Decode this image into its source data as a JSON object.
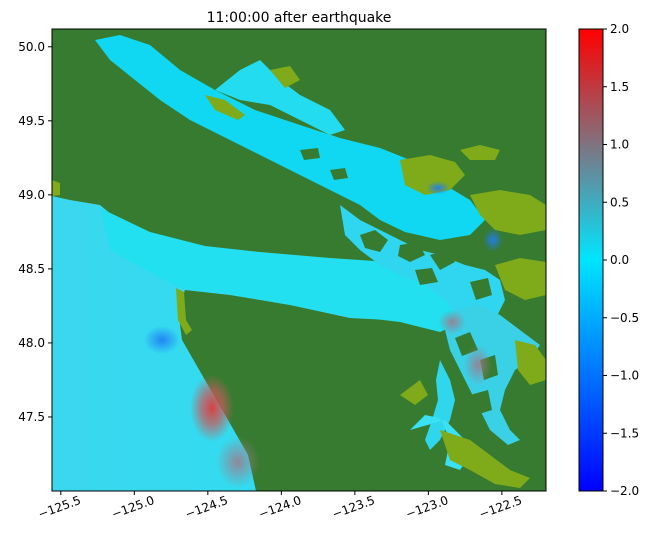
{
  "chart_data": {
    "type": "heatmap",
    "title": "11:00:00 after earthquake",
    "xlabel": "",
    "ylabel": "",
    "xlim": [
      -125.56,
      -122.2
    ],
    "ylim": [
      47.0,
      50.12
    ],
    "x_ticks": [
      -125.5,
      -125.0,
      -124.5,
      -124.0,
      -123.5,
      -123.0,
      -122.5
    ],
    "x_tick_labels": [
      "−125.5",
      "−125.0",
      "−124.5",
      "−124.0",
      "−123.5",
      "−123.0",
      "−122.5"
    ],
    "y_ticks": [
      47.5,
      48.0,
      48.5,
      49.0,
      49.5,
      50.0
    ],
    "y_tick_labels": [
      "47.5",
      "48.0",
      "48.5",
      "49.0",
      "49.5",
      "50.0"
    ],
    "colorbar": {
      "range": [
        -2.0,
        2.0
      ],
      "ticks": [
        2.0,
        1.5,
        1.0,
        0.5,
        0.0,
        -0.5,
        -1.0,
        -1.5,
        -2.0
      ],
      "tick_labels": [
        "2.0",
        "1.5",
        "1.0",
        "0.5",
        "0.0",
        "−0.5",
        "−1.0",
        "−1.5",
        "−2.0"
      ],
      "colors": [
        "#0000ff",
        "#00e5ff",
        "#ff0000"
      ]
    },
    "land_color": "#367b30",
    "shallow_color": "#7faa1a",
    "highlights": [
      {
        "x": -124.45,
        "y": 47.6,
        "value": 1.6
      },
      {
        "x": -124.6,
        "y": 47.25,
        "value": 1.2
      },
      {
        "x": -122.75,
        "y": 47.75,
        "value": 1.2
      },
      {
        "x": -124.85,
        "y": 48.02,
        "value": -0.6
      },
      {
        "x": -122.95,
        "y": 49.06,
        "value": -0.7
      },
      {
        "x": -122.6,
        "y": 48.65,
        "value": -0.6
      }
    ]
  }
}
